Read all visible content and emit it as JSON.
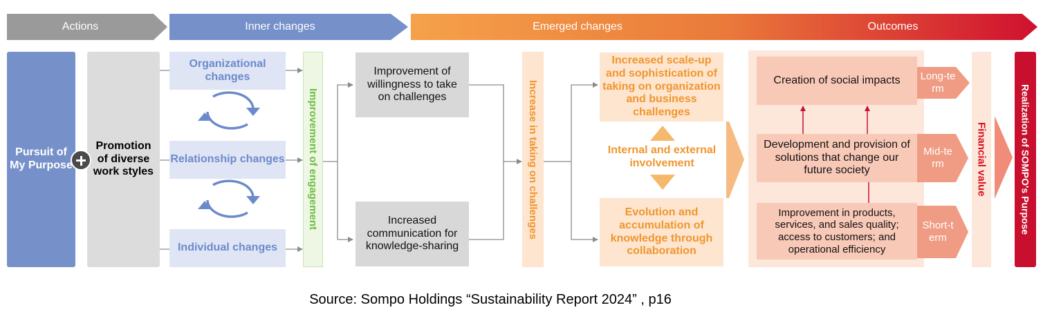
{
  "headers": {
    "actions": "Actions",
    "inner": "Inner changes",
    "emerged": "Emerged changes",
    "outcomes": "Outcomes"
  },
  "actions": {
    "purpose": "Pursuit of My Purpose",
    "plus_icon": "plus-icon",
    "work_styles": "Promotion of diverse work styles"
  },
  "inner": {
    "organizational": "Organizational changes",
    "relationship": "Relationship changes",
    "individual": "Individual changes",
    "cycle_icon": "cycle-arrows-icon",
    "engagement": "Improvement of engagement"
  },
  "emerged": {
    "willingness": "Improvement of willingness to take on challenges",
    "communication": "Increased communication for knowledge-sharing",
    "taking_on": "Increase in taking on challenges",
    "scale_up": "Increased scale-up and sophistication of taking on organization and business challenges",
    "involvement": "Internal and external involvement",
    "evolution": "Evolution and accumulation of knowledge through collaboration"
  },
  "outcomes": {
    "social_impacts": "Creation of social impacts",
    "solutions": "Development and provision of solutions that change our future society",
    "improvement": "Improvement in products, services, and sales quality; access to customers; and operational efficiency",
    "long_term": "Long-term",
    "mid_term": "Mid-term",
    "short_term": "Short-term",
    "financial_value": "Financial value",
    "realization": "Realization of SOMPO's Purpose"
  },
  "source": "Source: Sompo Holdings “Sustainability Report 2024” , p16",
  "colors": {
    "gray_header": "#9a9a9a",
    "blue": "#7690c9",
    "light_blue": "#dfe5f4",
    "green": "#6ebd44",
    "orange": "#f0962e",
    "red": "#c8102e",
    "salmon": "#f08c78"
  }
}
